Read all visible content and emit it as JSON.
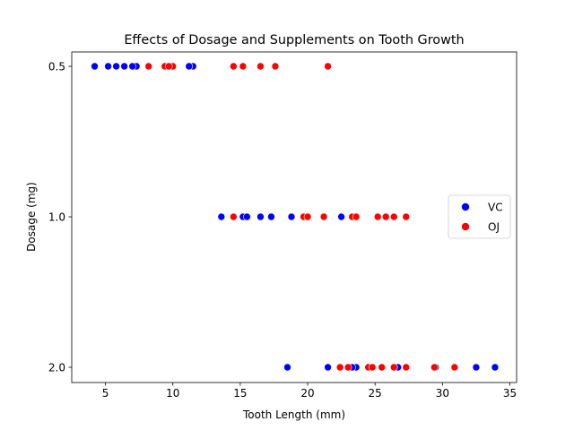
{
  "chart_data": {
    "type": "scatter",
    "title": "Effects of Dosage and Supplements on Tooth Growth",
    "xlabel": "Tooth Length (mm)",
    "ylabel": "Dosage (mg)",
    "xlim": [
      2.5,
      35.5
    ],
    "xticks": [
      5,
      10,
      15,
      20,
      25,
      30,
      35
    ],
    "y_categories": [
      "0.5",
      "1.0",
      "2.0"
    ],
    "grid": false,
    "legend_position": "center-right",
    "series": [
      {
        "name": "VC",
        "color": "#0000ff",
        "points": [
          {
            "x": 4.2,
            "y": "0.5"
          },
          {
            "x": 11.5,
            "y": "0.5"
          },
          {
            "x": 7.3,
            "y": "0.5"
          },
          {
            "x": 5.8,
            "y": "0.5"
          },
          {
            "x": 6.4,
            "y": "0.5"
          },
          {
            "x": 10.0,
            "y": "0.5"
          },
          {
            "x": 11.2,
            "y": "0.5"
          },
          {
            "x": 11.2,
            "y": "0.5"
          },
          {
            "x": 5.2,
            "y": "0.5"
          },
          {
            "x": 7.0,
            "y": "0.5"
          },
          {
            "x": 16.5,
            "y": "1.0"
          },
          {
            "x": 16.5,
            "y": "1.0"
          },
          {
            "x": 15.2,
            "y": "1.0"
          },
          {
            "x": 17.3,
            "y": "1.0"
          },
          {
            "x": 22.5,
            "y": "1.0"
          },
          {
            "x": 17.3,
            "y": "1.0"
          },
          {
            "x": 13.6,
            "y": "1.0"
          },
          {
            "x": 14.5,
            "y": "1.0"
          },
          {
            "x": 18.8,
            "y": "1.0"
          },
          {
            "x": 15.5,
            "y": "1.0"
          },
          {
            "x": 23.6,
            "y": "2.0"
          },
          {
            "x": 18.5,
            "y": "2.0"
          },
          {
            "x": 33.9,
            "y": "2.0"
          },
          {
            "x": 25.5,
            "y": "2.0"
          },
          {
            "x": 26.4,
            "y": "2.0"
          },
          {
            "x": 32.5,
            "y": "2.0"
          },
          {
            "x": 26.7,
            "y": "2.0"
          },
          {
            "x": 21.5,
            "y": "2.0"
          },
          {
            "x": 23.3,
            "y": "2.0"
          },
          {
            "x": 29.5,
            "y": "2.0"
          }
        ]
      },
      {
        "name": "OJ",
        "color": "#ff0000",
        "points": [
          {
            "x": 15.2,
            "y": "0.5"
          },
          {
            "x": 21.5,
            "y": "0.5"
          },
          {
            "x": 17.6,
            "y": "0.5"
          },
          {
            "x": 9.7,
            "y": "0.5"
          },
          {
            "x": 14.5,
            "y": "0.5"
          },
          {
            "x": 10.0,
            "y": "0.5"
          },
          {
            "x": 8.2,
            "y": "0.5"
          },
          {
            "x": 9.4,
            "y": "0.5"
          },
          {
            "x": 16.5,
            "y": "0.5"
          },
          {
            "x": 9.7,
            "y": "0.5"
          },
          {
            "x": 19.7,
            "y": "1.0"
          },
          {
            "x": 23.3,
            "y": "1.0"
          },
          {
            "x": 23.6,
            "y": "1.0"
          },
          {
            "x": 26.4,
            "y": "1.0"
          },
          {
            "x": 20.0,
            "y": "1.0"
          },
          {
            "x": 25.2,
            "y": "1.0"
          },
          {
            "x": 25.8,
            "y": "1.0"
          },
          {
            "x": 21.2,
            "y": "1.0"
          },
          {
            "x": 14.5,
            "y": "1.0"
          },
          {
            "x": 27.3,
            "y": "1.0"
          },
          {
            "x": 25.5,
            "y": "2.0"
          },
          {
            "x": 26.4,
            "y": "2.0"
          },
          {
            "x": 22.4,
            "y": "2.0"
          },
          {
            "x": 24.5,
            "y": "2.0"
          },
          {
            "x": 24.8,
            "y": "2.0"
          },
          {
            "x": 30.9,
            "y": "2.0"
          },
          {
            "x": 26.4,
            "y": "2.0"
          },
          {
            "x": 27.3,
            "y": "2.0"
          },
          {
            "x": 29.4,
            "y": "2.0"
          },
          {
            "x": 23.0,
            "y": "2.0"
          }
        ]
      }
    ]
  }
}
